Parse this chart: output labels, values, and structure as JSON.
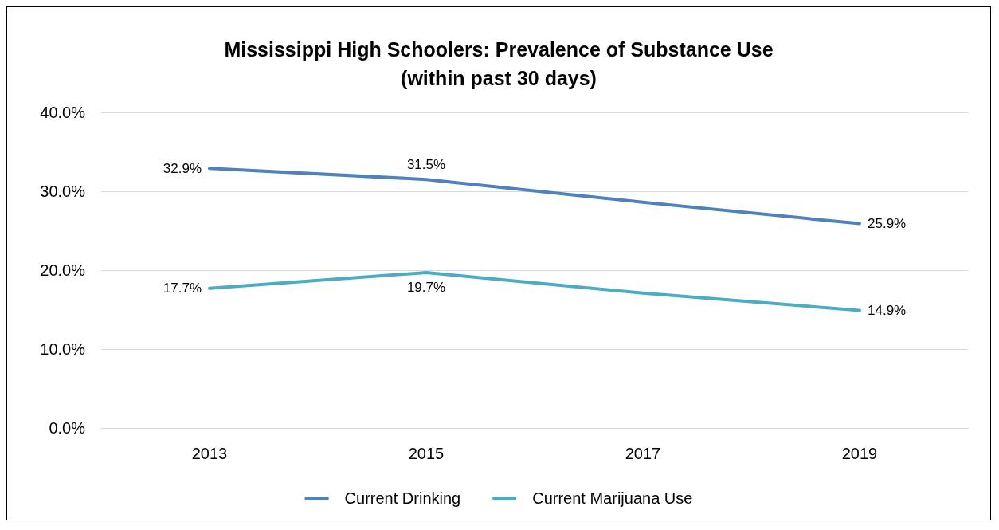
{
  "chart_data": {
    "type": "line",
    "title": "Mississippi High Schoolers: Prevalence of Substance Use\n(within past 30 days)",
    "categories": [
      "2013",
      "2015",
      "2017",
      "2019"
    ],
    "series": [
      {
        "name": "Current Drinking",
        "color": "#4f81bd",
        "values": [
          32.9,
          31.5,
          28.6,
          25.9
        ],
        "value_labels": [
          "32.9%",
          "31.5%",
          null,
          "25.9%"
        ]
      },
      {
        "name": "Current Marijuana Use",
        "color": "#4bacc6",
        "values": [
          17.7,
          19.7,
          17.1,
          14.9
        ],
        "value_labels": [
          "17.7%",
          "19.7%",
          null,
          "14.9%"
        ]
      }
    ],
    "ylim": [
      0,
      40
    ],
    "yticks": [
      {
        "value": 0,
        "label": "0.0%"
      },
      {
        "value": 10,
        "label": "10.0%"
      },
      {
        "value": 20,
        "label": "20.0%"
      },
      {
        "value": 30,
        "label": "30.0%"
      },
      {
        "value": 40,
        "label": "40.0%"
      }
    ],
    "grid": "y",
    "legend": "bottom",
    "marker": "none",
    "line_style": "solid"
  }
}
